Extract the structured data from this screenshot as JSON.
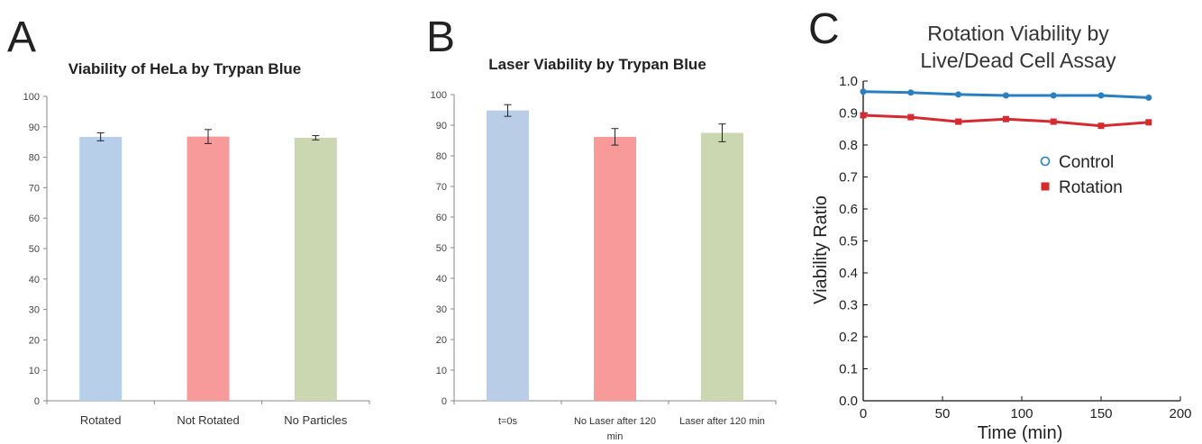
{
  "panel_letters": [
    "A",
    "B",
    "C"
  ],
  "chart_data": [
    {
      "type": "bar",
      "title": "Viability  of HeLa by Trypan Blue",
      "categories": [
        "Rotated",
        "Not Rotated",
        "No Particles"
      ],
      "values": [
        86.7,
        86.8,
        86.4
      ],
      "errors": [
        1.3,
        2.3,
        0.7
      ],
      "colors": [
        "#b8cfe9",
        "#f99a9a",
        "#cbd7b0"
      ],
      "ylim": [
        0,
        100
      ],
      "yticks": [
        0,
        10,
        20,
        30,
        40,
        50,
        60,
        70,
        80,
        90,
        100
      ],
      "xlabel": "",
      "ylabel": "",
      "grid": false
    },
    {
      "type": "bar",
      "title": "Laser Viability by Trypan Blue",
      "categories": [
        "t=0s",
        "No Laser after 120\nmin",
        "Laser after 120 min"
      ],
      "values": [
        94.8,
        86.2,
        87.5
      ],
      "errors": [
        1.9,
        2.7,
        2.9
      ],
      "colors": [
        "#bacde6",
        "#f99a9a",
        "#cbd7b0"
      ],
      "ylim": [
        0,
        100
      ],
      "yticks": [
        0,
        10,
        20,
        30,
        40,
        50,
        60,
        70,
        80,
        90,
        100
      ],
      "xlabel": "",
      "ylabel": "",
      "grid": false
    },
    {
      "type": "line",
      "title": "Rotation Viability by\nLive/Dead Cell Assay",
      "xlabel": "Time (min)",
      "ylabel": "Viability Ratio",
      "xlim": [
        0,
        200
      ],
      "ylim": [
        0.0,
        1.0
      ],
      "xticks": [
        0,
        50,
        100,
        150,
        200
      ],
      "yticks": [
        "0.0",
        "0.1",
        "0.2",
        "0.3",
        "0.4",
        "0.5",
        "0.6",
        "0.7",
        "0.8",
        "0.9",
        "1.0"
      ],
      "x": [
        0,
        30,
        60,
        90,
        120,
        150,
        180
      ],
      "series": [
        {
          "name": "Control",
          "values": [
            0.967,
            0.964,
            0.958,
            0.955,
            0.955,
            0.955,
            0.948
          ],
          "color": "#2a7fc0",
          "marker": "circle"
        },
        {
          "name": "Rotation",
          "values": [
            0.893,
            0.887,
            0.873,
            0.881,
            0.873,
            0.86,
            0.871
          ],
          "color": "#d42a30",
          "marker": "square"
        }
      ],
      "legend": "right",
      "grid": false
    }
  ]
}
